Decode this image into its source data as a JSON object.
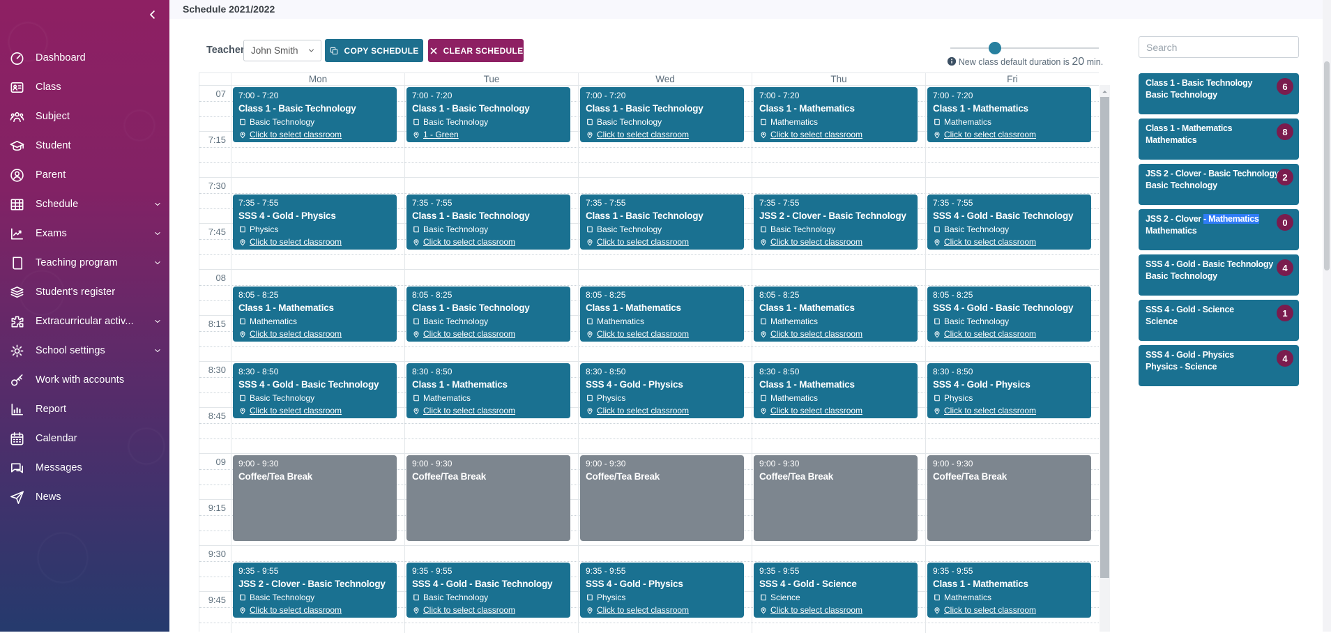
{
  "page_title": "Schedule 2021/2022",
  "colors": {
    "teal": "#1A7191",
    "btnteal": "#1D6F8E",
    "magenta": "#8E2063",
    "badge": "#7A1C4E",
    "break": "#7D868F",
    "sel": "#2F7CF6"
  },
  "sidebar": {
    "items": [
      {
        "label": "Dashboard",
        "icon": "dashboard"
      },
      {
        "label": "Class",
        "icon": "class"
      },
      {
        "label": "Subject",
        "icon": "subject"
      },
      {
        "label": "Student",
        "icon": "student"
      },
      {
        "label": "Parent",
        "icon": "parent"
      },
      {
        "label": "Schedule",
        "icon": "schedule",
        "expandable": true
      },
      {
        "label": "Exams",
        "icon": "exams",
        "expandable": true
      },
      {
        "label": "Teaching program",
        "icon": "teaching-program",
        "expandable": true
      },
      {
        "label": "Student's register",
        "icon": "students-register"
      },
      {
        "label": "Extracurricular activ...",
        "icon": "extracurricular",
        "expandable": true
      },
      {
        "label": "School settings",
        "icon": "school-settings",
        "expandable": true
      },
      {
        "label": "Work with accounts",
        "icon": "work-with-accounts"
      },
      {
        "label": "Report",
        "icon": "report"
      },
      {
        "label": "Calendar",
        "icon": "calendar"
      },
      {
        "label": "Messages",
        "icon": "messages"
      },
      {
        "label": "News",
        "icon": "news"
      }
    ]
  },
  "toolbar": {
    "teacher_label": "Teacher",
    "teacher_value": "John Smith",
    "copy_button": "COPY SCHEDULE",
    "clear_button": "CLEAR SCHEDULE",
    "duration_note_pre": "New class default duration is ",
    "duration_value": "20",
    "duration_note_post": " min."
  },
  "calendar": {
    "time_labels": [
      "07",
      "7:15",
      "7:30",
      "7:45",
      "08",
      "8:15",
      "8:30",
      "8:45",
      "09",
      "9:15",
      "9:30",
      "9:45"
    ],
    "days": [
      {
        "label": "Mon",
        "events": [
          {
            "time": "7:00 - 7:20",
            "title": "Class 1 - Basic Technology",
            "subject": "Basic Technology",
            "location": "Click to select classroom"
          },
          {
            "time": "7:35 - 7:55",
            "title": "SSS 4 - Gold - Physics",
            "subject": "Physics",
            "location": "Click to select classroom"
          },
          {
            "time": "8:05 - 8:25",
            "title": "Class 1 - Mathematics",
            "subject": "Mathematics",
            "location": "Click to select classroom"
          },
          {
            "time": "8:30 - 8:50",
            "title": "SSS 4 - Gold - Basic Technology",
            "subject": "Basic Technology",
            "location": "Click to select classroom"
          },
          {
            "time": "9:00 - 9:30",
            "title": "Coffee/Tea Break",
            "is_break": true
          },
          {
            "time": "9:35 - 9:55",
            "title": "JSS 2 - Clover - Basic Technology",
            "subject": "Basic Technology",
            "location": "Click to select classroom"
          }
        ]
      },
      {
        "label": "Tue",
        "events": [
          {
            "time": "7:00 - 7:20",
            "title": "Class 1 - Basic Technology",
            "subject": "Basic Technology",
            "location": "1 - Green"
          },
          {
            "time": "7:35 - 7:55",
            "title": "Class 1 - Basic Technology",
            "subject": "Basic Technology",
            "location": "Click to select classroom"
          },
          {
            "time": "8:05 - 8:25",
            "title": "Class 1 - Basic Technology",
            "subject": "Basic Technology",
            "location": "Click to select classroom"
          },
          {
            "time": "8:30 - 8:50",
            "title": "Class 1 - Mathematics",
            "subject": "Mathematics",
            "location": "Click to select classroom"
          },
          {
            "time": "9:00 - 9:30",
            "title": "Coffee/Tea Break",
            "is_break": true
          },
          {
            "time": "9:35 - 9:55",
            "title": "SSS 4 - Gold - Basic Technology",
            "subject": "Basic Technology",
            "location": "Click to select classroom"
          }
        ]
      },
      {
        "label": "Wed",
        "events": [
          {
            "time": "7:00 - 7:20",
            "title": "Class 1 - Basic Technology",
            "subject": "Basic Technology",
            "location": "Click to select classroom"
          },
          {
            "time": "7:35 - 7:55",
            "title": "Class 1 - Basic Technology",
            "subject": "Basic Technology",
            "location": "Click to select classroom"
          },
          {
            "time": "8:05 - 8:25",
            "title": "Class 1 - Mathematics",
            "subject": "Mathematics",
            "location": "Click to select classroom"
          },
          {
            "time": "8:30 - 8:50",
            "title": "SSS 4 - Gold - Physics",
            "subject": "Physics",
            "location": "Click to select classroom"
          },
          {
            "time": "9:00 - 9:30",
            "title": "Coffee/Tea Break",
            "is_break": true
          },
          {
            "time": "9:35 - 9:55",
            "title": "SSS 4 - Gold - Physics",
            "subject": "Physics",
            "location": "Click to select classroom"
          }
        ]
      },
      {
        "label": "Thu",
        "events": [
          {
            "time": "7:00 - 7:20",
            "title": "Class 1 - Mathematics",
            "subject": "Mathematics",
            "location": "Click to select classroom"
          },
          {
            "time": "7:35 - 7:55",
            "title": "JSS 2 - Clover - Basic Technology",
            "subject": "Basic Technology",
            "location": "Click to select classroom"
          },
          {
            "time": "8:05 - 8:25",
            "title": "Class 1 - Mathematics",
            "subject": "Mathematics",
            "location": "Click to select classroom"
          },
          {
            "time": "8:30 - 8:50",
            "title": "Class 1 - Mathematics",
            "subject": "Mathematics",
            "location": "Click to select classroom"
          },
          {
            "time": "9:00 - 9:30",
            "title": "Coffee/Tea Break",
            "is_break": true
          },
          {
            "time": "9:35 - 9:55",
            "title": "SSS 4 - Gold - Science",
            "subject": "Science",
            "location": "Click to select classroom"
          }
        ]
      },
      {
        "label": "Fri",
        "events": [
          {
            "time": "7:00 - 7:20",
            "title": "Class 1 - Mathematics",
            "subject": "Mathematics",
            "location": "Click to select classroom"
          },
          {
            "time": "7:35 - 7:55",
            "title": "SSS 4 - Gold - Basic Technology",
            "subject": "Basic Technology",
            "location": "Click to select classroom"
          },
          {
            "time": "8:05 - 8:25",
            "title": "SSS 4 - Gold - Basic Technology",
            "subject": "Basic Technology",
            "location": "Click to select classroom"
          },
          {
            "time": "8:30 - 8:50",
            "title": "SSS 4 - Gold - Physics",
            "subject": "Physics",
            "location": "Click to select classroom"
          },
          {
            "time": "9:00 - 9:30",
            "title": "Coffee/Tea Break",
            "is_break": true
          },
          {
            "time": "9:35 - 9:55",
            "title": "Class 1 - Mathematics",
            "subject": "Mathematics",
            "location": "Click to select classroom"
          }
        ]
      }
    ]
  },
  "panel": {
    "search_placeholder": "Search",
    "items": [
      {
        "title_pre": "Class 1 - Basic Technology",
        "title_sel": "",
        "subtitle": "Basic Technology",
        "badge": 6
      },
      {
        "title_pre": "Class 1 - Mathematics",
        "title_sel": "",
        "subtitle": "Mathematics",
        "badge": 8
      },
      {
        "title_pre": "JSS 2 - Clover - Basic Technology",
        "title_sel": "",
        "subtitle": "Basic Technology",
        "badge": 2
      },
      {
        "title_pre": "JSS 2 - Clover ",
        "title_sel": "- Mathematics",
        "subtitle": "Mathematics",
        "badge": 0
      },
      {
        "title_pre": "SSS 4 - Gold - Basic Technology",
        "title_sel": "",
        "subtitle": "Basic Technology",
        "badge": 4
      },
      {
        "title_pre": "SSS 4 - Gold - Science",
        "title_sel": "",
        "subtitle": "Science",
        "badge": 1
      },
      {
        "title_pre": "SSS 4 - Gold - Physics",
        "title_sel": "",
        "subtitle": "Physics - Science",
        "badge": 4
      }
    ]
  }
}
